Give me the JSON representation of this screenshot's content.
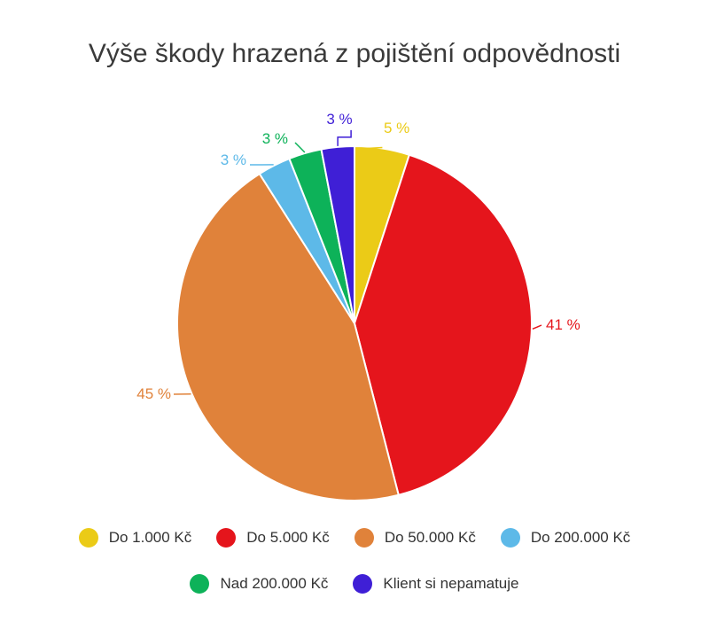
{
  "chart_data": {
    "type": "pie",
    "title": "Výše škody hrazená z pojištění odpovědnosti",
    "categories": [
      "Do 1.000 Kč",
      "Do 5.000 Kč",
      "Do 50.000 Kč",
      "Do 200.000 Kč",
      "Nad 200.000 Kč",
      "Klient si nepamatuje"
    ],
    "values": [
      5,
      41,
      45,
      3,
      3,
      3
    ],
    "value_labels": [
      "5 %",
      "41 %",
      "45 %",
      "3 %",
      "3 %",
      "3 %"
    ],
    "colors": [
      "#EBCB17",
      "#E5151C",
      "#E0823A",
      "#5DB9E8",
      "#0DB259",
      "#3F1FD6"
    ],
    "legend_position": "bottom",
    "start_angle": "top, clockwise"
  }
}
